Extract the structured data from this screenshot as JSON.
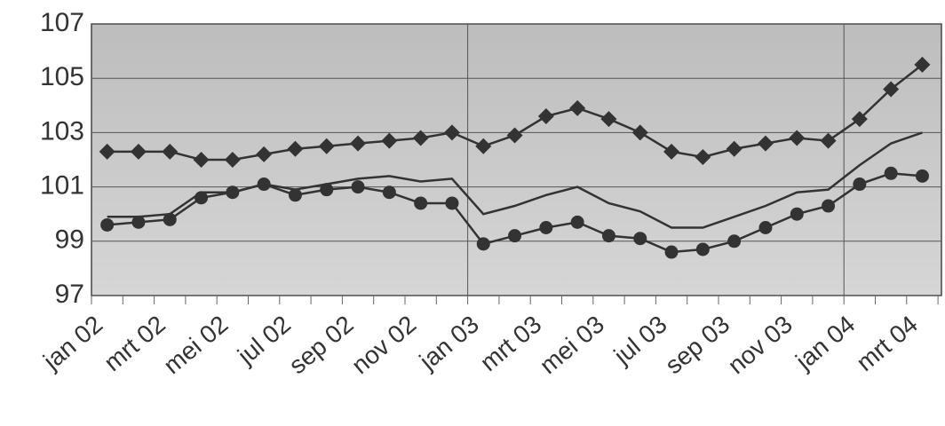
{
  "chart_data": {
    "type": "line",
    "categories": [
      "jan 02",
      null,
      "mrt 02",
      null,
      "mei 02",
      null,
      "jul 02",
      null,
      "sep 02",
      null,
      "nov 02",
      null,
      "jan 03",
      null,
      "mrt 03",
      null,
      "mei 03",
      null,
      "jul 03",
      null,
      "sep 03",
      null,
      "nov 03",
      null,
      "jan 04",
      null,
      "mrt 04"
    ],
    "series": [
      {
        "color": "#333333",
        "marker": "diamond",
        "values": [
          102.3,
          102.3,
          102.3,
          102.0,
          102.0,
          102.2,
          102.4,
          102.5,
          102.6,
          102.7,
          102.8,
          103.0,
          102.5,
          102.9,
          103.6,
          103.9,
          103.5,
          103.0,
          102.3,
          102.1,
          102.4,
          102.6,
          102.8,
          102.7,
          103.5,
          104.6,
          105.5
        ]
      },
      {
        "color": "#333333",
        "marker": null,
        "values": [
          99.9,
          99.9,
          100.0,
          100.8,
          100.8,
          101.1,
          100.9,
          101.1,
          101.3,
          101.4,
          101.2,
          101.3,
          100.0,
          100.3,
          100.7,
          101.0,
          100.4,
          100.1,
          99.5,
          99.5,
          99.9,
          100.3,
          100.8,
          100.9,
          101.8,
          102.6,
          103.0
        ]
      },
      {
        "color": "#333333",
        "marker": "circle",
        "values": [
          99.6,
          99.7,
          99.8,
          100.6,
          100.8,
          101.1,
          100.7,
          100.9,
          101.0,
          100.8,
          100.4,
          100.4,
          98.9,
          99.2,
          99.5,
          99.7,
          99.2,
          99.1,
          98.6,
          98.7,
          99.0,
          99.5,
          100.0,
          100.3,
          101.1,
          101.5,
          101.4
        ]
      }
    ],
    "ylim": [
      97,
      107
    ],
    "yticks": [
      97,
      99,
      101,
      103,
      105,
      107
    ],
    "grid": true
  }
}
